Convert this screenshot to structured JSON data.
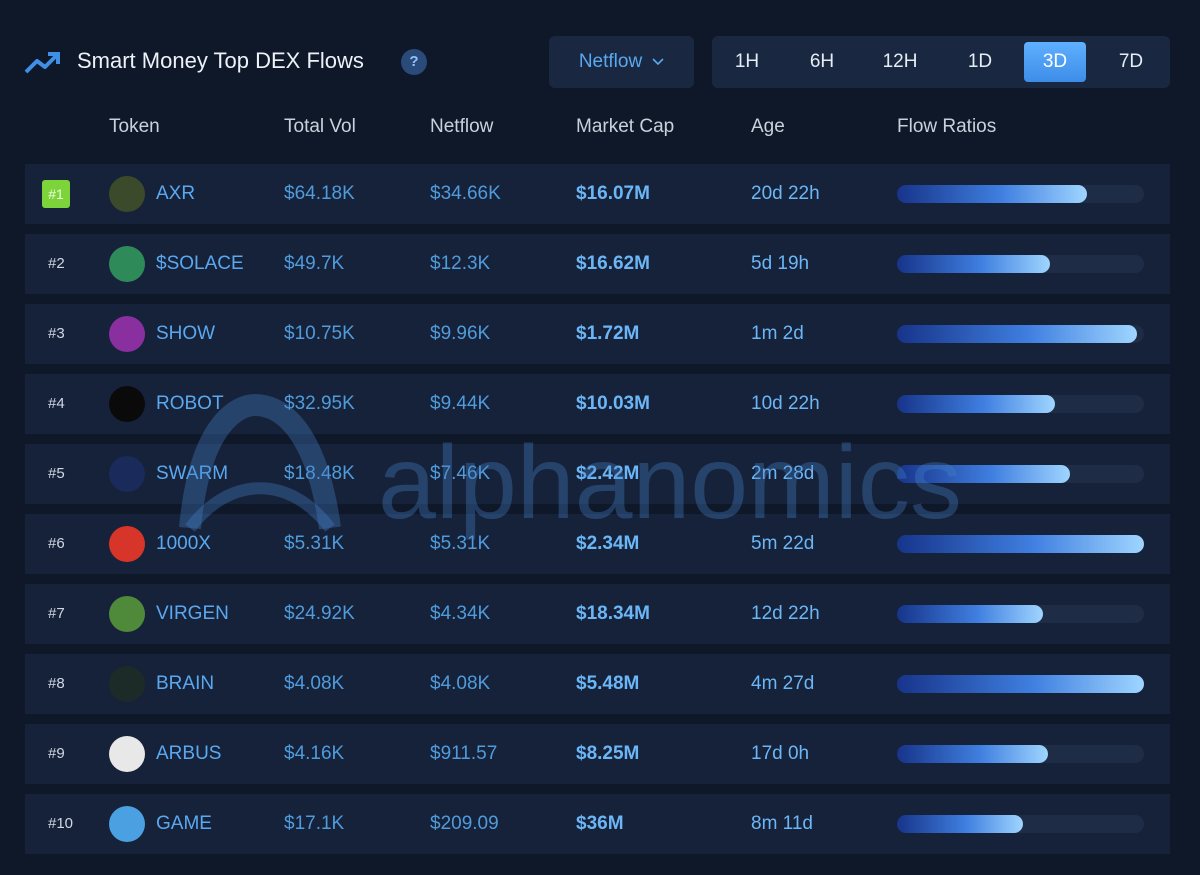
{
  "header": {
    "title": "Smart Money Top DEX Flows",
    "help": "?",
    "dropdown": "Netflow",
    "timeframes": [
      {
        "label": "1H"
      },
      {
        "label": "6H"
      },
      {
        "label": "12H"
      },
      {
        "label": "1D"
      },
      {
        "label": "3D",
        "selected": true
      },
      {
        "label": "7D"
      }
    ]
  },
  "table": {
    "columns": [
      "Token",
      "Total Vol",
      "Netflow",
      "Market Cap",
      "Age",
      "Flow Ratios"
    ],
    "rows": [
      {
        "rank": "#1",
        "highlighted": true,
        "token": "AXR",
        "total_vol": "$64.18K",
        "netflow": "$34.66K",
        "market_cap": "$16.07M",
        "age": "20d 22h",
        "flow_ratio": 77
      },
      {
        "rank": "#2",
        "token": "$SOLACE",
        "total_vol": "$49.7K",
        "netflow": "$12.3K",
        "market_cap": "$16.62M",
        "age": "5d 19h",
        "flow_ratio": 62
      },
      {
        "rank": "#3",
        "token": "SHOW",
        "total_vol": "$10.75K",
        "netflow": "$9.96K",
        "market_cap": "$1.72M",
        "age": "1m 2d",
        "flow_ratio": 97
      },
      {
        "rank": "#4",
        "token": "ROBOT",
        "total_vol": "$32.95K",
        "netflow": "$9.44K",
        "market_cap": "$10.03M",
        "age": "10d 22h",
        "flow_ratio": 64
      },
      {
        "rank": "#5",
        "token": "SWARM",
        "total_vol": "$18.48K",
        "netflow": "$7.46K",
        "market_cap": "$2.42M",
        "age": "2m 28d",
        "flow_ratio": 70
      },
      {
        "rank": "#6",
        "token": "1000X",
        "total_vol": "$5.31K",
        "netflow": "$5.31K",
        "market_cap": "$2.34M",
        "age": "5m 22d",
        "flow_ratio": 100
      },
      {
        "rank": "#7",
        "token": "VIRGEN",
        "total_vol": "$24.92K",
        "netflow": "$4.34K",
        "market_cap": "$18.34M",
        "age": "12d 22h",
        "flow_ratio": 59
      },
      {
        "rank": "#8",
        "token": "BRAIN",
        "total_vol": "$4.08K",
        "netflow": "$4.08K",
        "market_cap": "$5.48M",
        "age": "4m 27d",
        "flow_ratio": 100
      },
      {
        "rank": "#9",
        "token": "ARBUS",
        "total_vol": "$4.16K",
        "netflow": "$911.57",
        "market_cap": "$8.25M",
        "age": "17d 0h",
        "flow_ratio": 61
      },
      {
        "rank": "#10",
        "token": "GAME",
        "total_vol": "$17.1K",
        "netflow": "$209.09",
        "market_cap": "$36M",
        "age": "8m 11d",
        "flow_ratio": 51
      }
    ]
  },
  "watermark": "alphanomics"
}
